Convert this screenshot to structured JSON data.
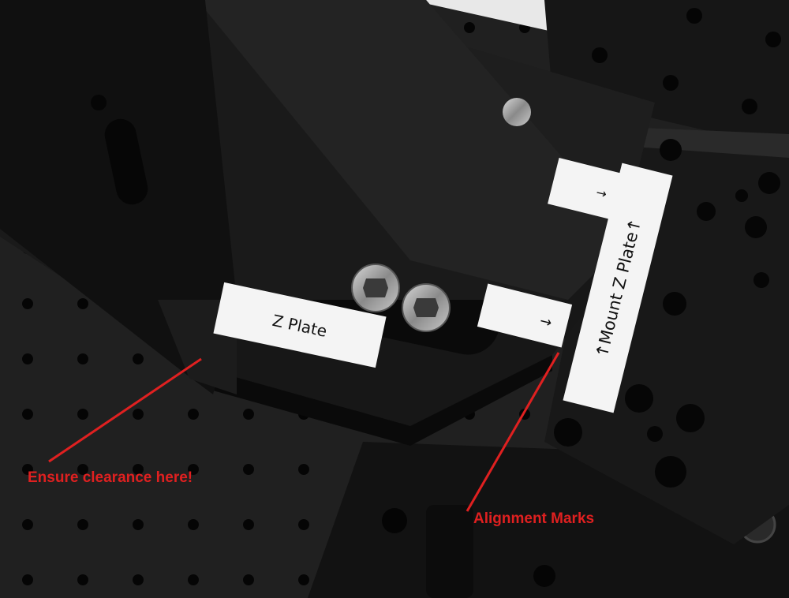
{
  "labels": {
    "z_plate": "Z Plate",
    "mount_z_plate": "↑Mount Z Plate↑",
    "arrow_right": "→",
    "arrow_right_lower": "→"
  },
  "annotations": {
    "clearance": "Ensure clearance here!",
    "alignment": "Alignment Marks"
  },
  "colors": {
    "annotation_red": "#e02020",
    "anodized_black": "#141414",
    "breadboard": "#1c1c1c",
    "label_white": "#f4f4f4"
  }
}
